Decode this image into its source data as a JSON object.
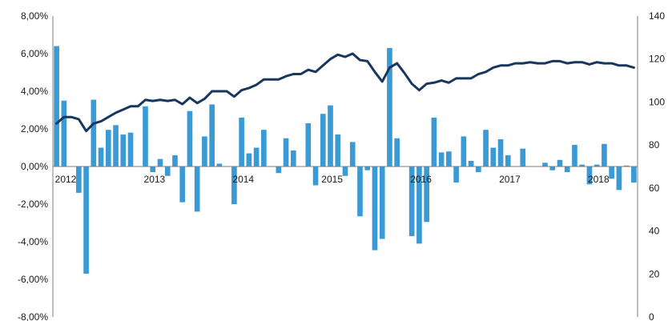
{
  "chart_data": {
    "type": "bar+line",
    "y_left": {
      "ticks": [
        "8,00%",
        "6,00%",
        "4,00%",
        "2,00%",
        "0,00%",
        "-2,00%",
        "-4,00%",
        "-6,00%",
        "-8,00%"
      ],
      "ylim": [
        -8,
        8
      ],
      "unit": "%"
    },
    "y_right": {
      "ticks": [
        "140",
        "120",
        "100",
        "80",
        "60",
        "40",
        "20",
        "0"
      ],
      "ylim": [
        0,
        140
      ]
    },
    "x_labels": [
      "2012",
      "2013",
      "2014",
      "2015",
      "2016",
      "2017",
      "2018"
    ],
    "grid": false,
    "legend": "none",
    "series": [
      {
        "type": "bar",
        "axis": "left",
        "color": "#3a9ad6",
        "start": "2012-01",
        "frequency": "monthly",
        "values": [
          6.4,
          3.5,
          0.0,
          -1.4,
          -5.7,
          3.55,
          1.0,
          1.95,
          2.2,
          1.7,
          1.8,
          0.0,
          3.2,
          -0.3,
          0.4,
          -0.5,
          0.6,
          -1.9,
          2.95,
          -2.4,
          1.6,
          3.3,
          0.15,
          0.0,
          -2.0,
          2.6,
          0.7,
          1.0,
          1.95,
          0.0,
          -0.35,
          1.5,
          0.85,
          0.0,
          2.3,
          -1.0,
          2.8,
          3.25,
          1.7,
          -0.5,
          1.3,
          -2.65,
          -0.2,
          -4.45,
          -3.85,
          6.3,
          1.5,
          0.0,
          -3.7,
          -4.1,
          -2.95,
          2.6,
          0.75,
          0.8,
          -0.85,
          1.6,
          0.3,
          -0.3,
          1.95,
          1.0,
          1.45,
          0.6,
          0.0,
          0.95,
          0.0,
          0.0,
          0.2,
          -0.2,
          0.35,
          -0.3,
          1.15,
          0.1,
          -0.95,
          0.1,
          1.2,
          -0.65,
          -1.25,
          0.05,
          -0.85
        ]
      },
      {
        "type": "line",
        "axis": "right",
        "color": "#17375e",
        "start": "2012-01",
        "frequency": "monthly",
        "values": [
          90,
          93,
          93,
          92,
          86.5,
          90,
          91,
          93,
          95,
          96.5,
          98,
          98,
          101,
          100.5,
          101,
          100.5,
          101,
          99,
          102,
          99.5,
          101.5,
          105,
          105,
          105,
          102.5,
          105.5,
          106.5,
          108,
          110.5,
          110.5,
          110.5,
          112,
          113,
          113,
          115,
          114,
          117,
          120,
          122,
          121,
          122.5,
          119.5,
          119,
          114,
          109.5,
          116,
          118,
          113.5,
          108.5,
          105.5,
          108.5,
          109,
          110,
          109,
          111,
          111,
          111,
          113,
          114,
          116,
          117,
          117,
          118,
          118,
          118.5,
          118,
          118,
          119,
          119,
          118,
          118.5,
          118.5,
          117.5,
          118.5,
          118,
          118,
          117,
          117,
          116
        ]
      }
    ]
  }
}
